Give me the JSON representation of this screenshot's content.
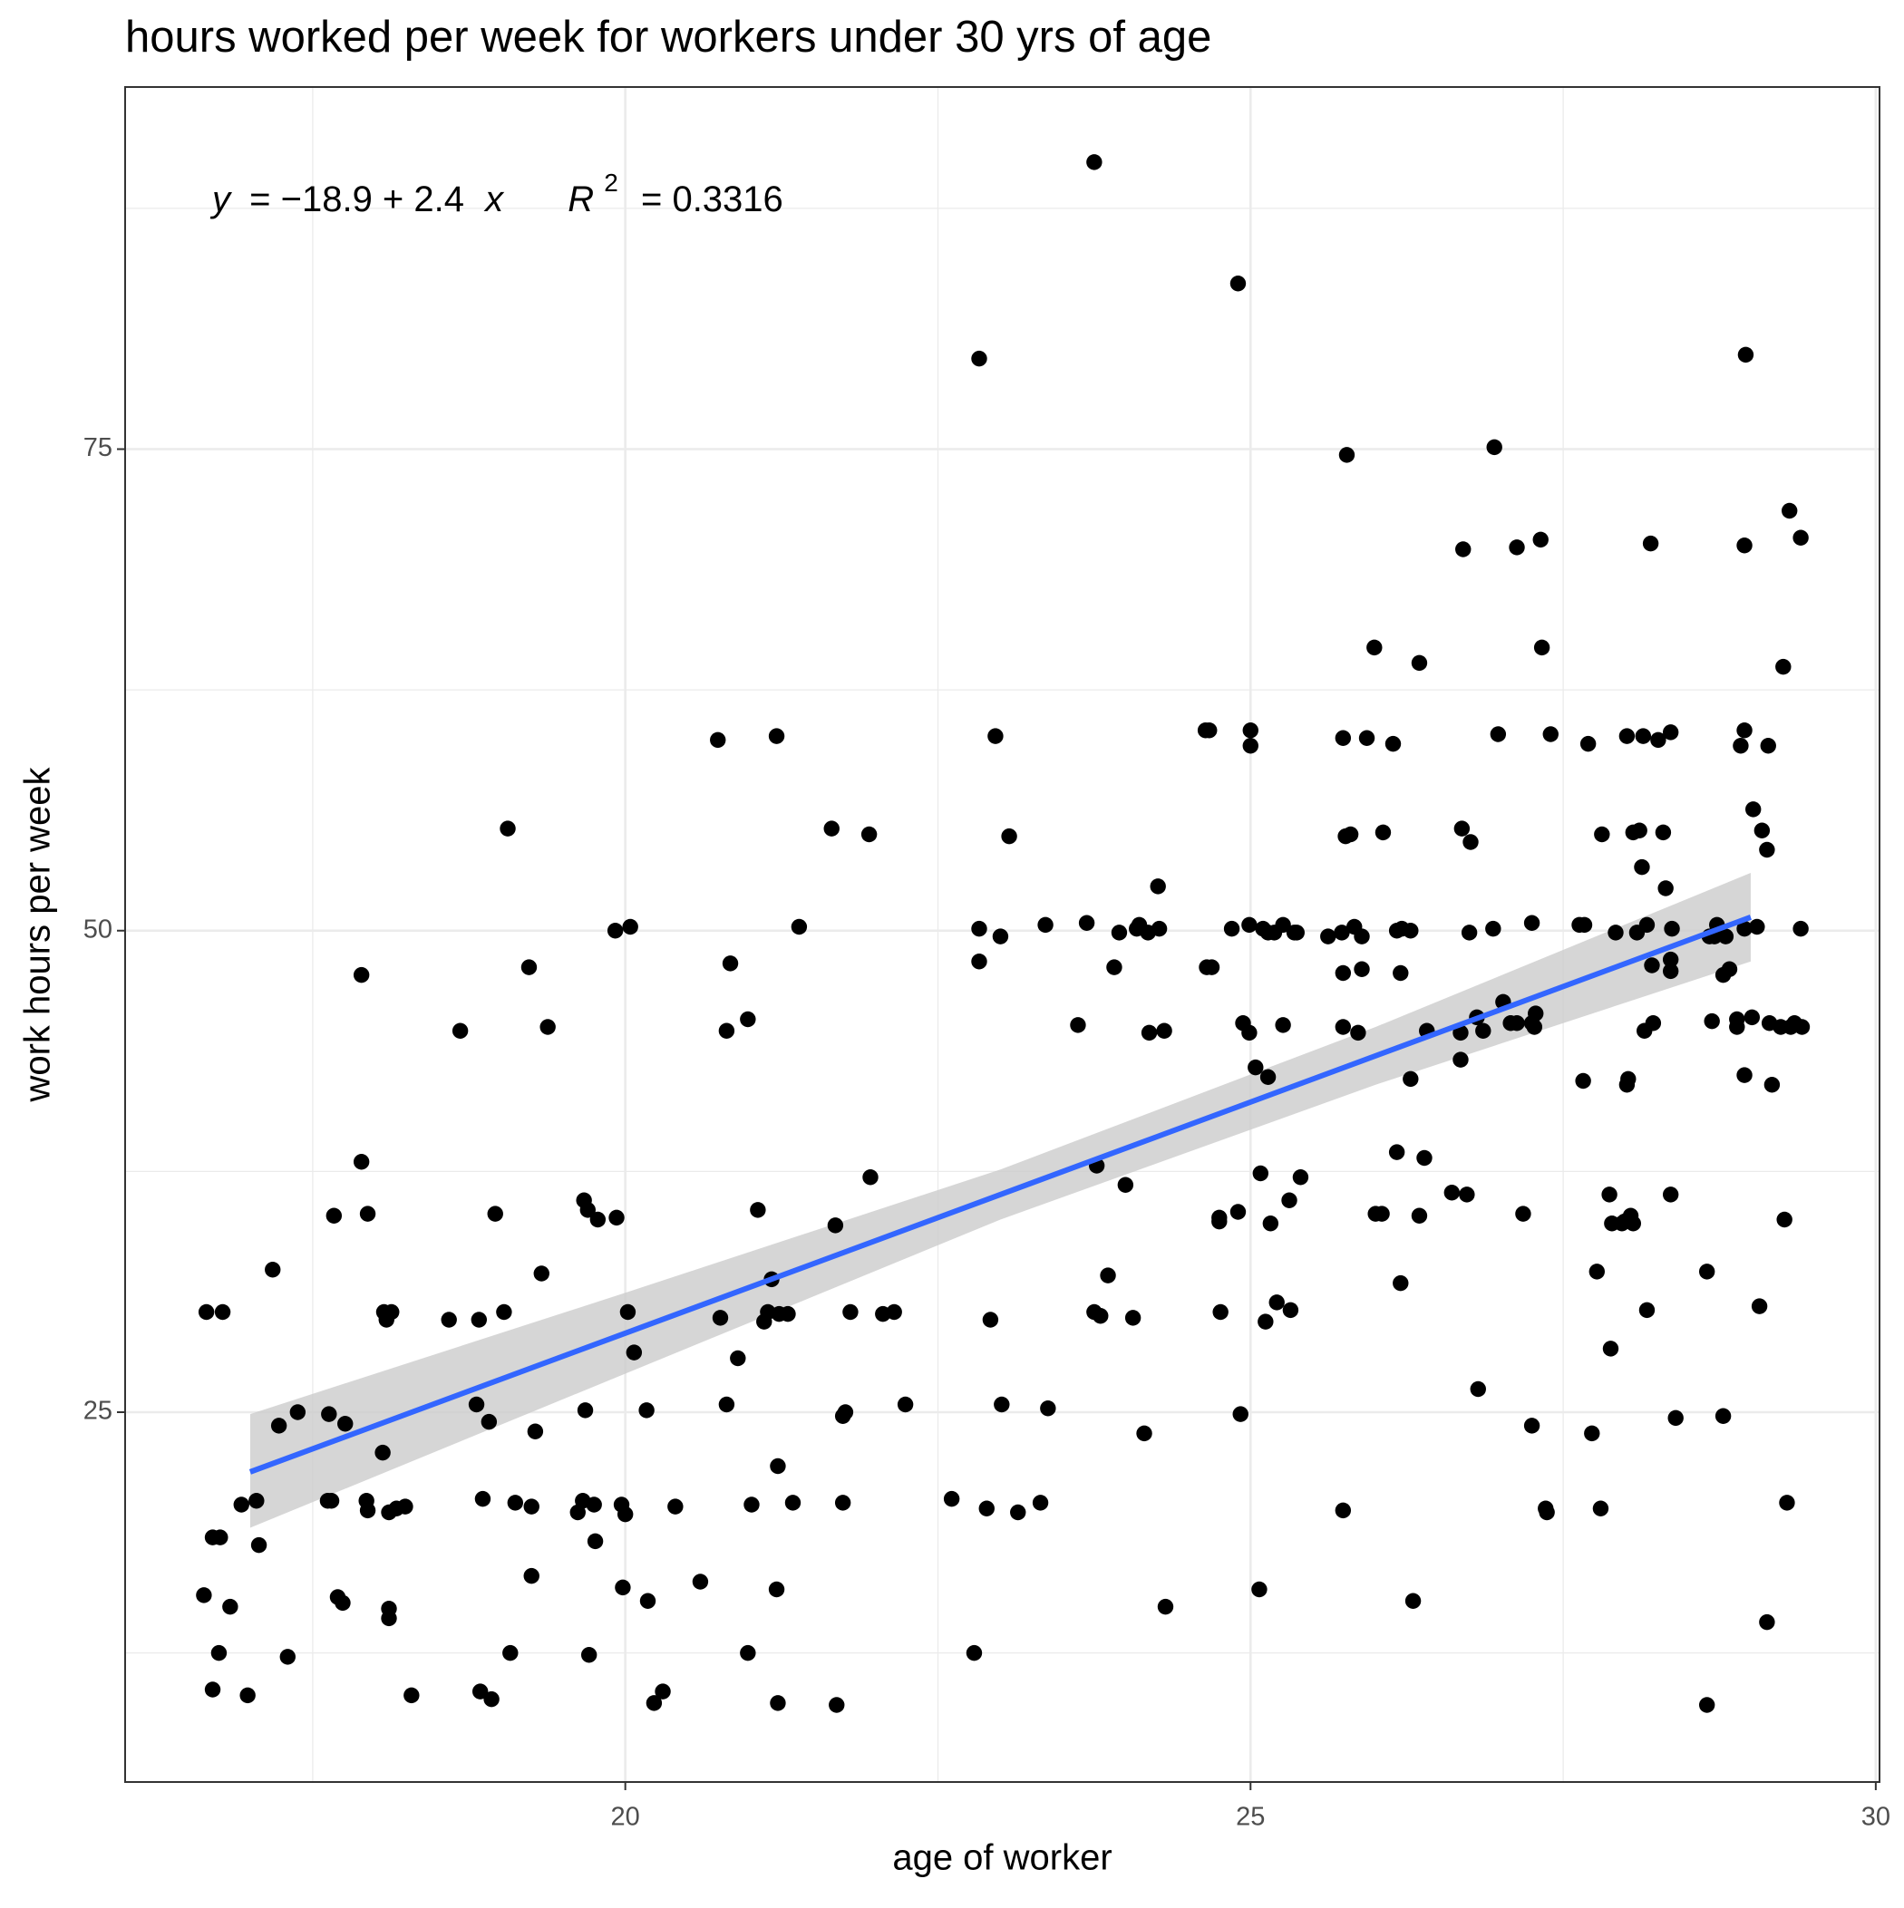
{
  "chart_data": {
    "type": "scatter",
    "title": "hours worked per week for workers under 30 yrs of age",
    "x_label": "age of worker",
    "y_label": "work hours per week",
    "xlim": [
      16,
      30.03
    ],
    "ylim": [
      5.8,
      93.8
    ],
    "xticks": [
      20,
      25,
      30
    ],
    "yticks": [
      25,
      50,
      75
    ],
    "x_minor_ticks": [
      17.5,
      22.5,
      27.5
    ],
    "y_minor_ticks": [
      12.5,
      37.5,
      62.5,
      87.5
    ],
    "grid": true,
    "annotation": {
      "y_symbol": "y",
      "equation": "= −18.9 + 2.4",
      "x_symbol": "x",
      "r_symbol": "R",
      "r_power": "2",
      "r_value": "= 0.3316"
    },
    "fit": {
      "intercept": -18.9,
      "slope": 2.4,
      "x_range": [
        17,
        29
      ],
      "color": "#3366ff",
      "band": {
        "color": "#cccccc",
        "x": [
          17,
          20,
          23,
          26,
          29
        ],
        "lower": [
          19.0,
          27.0,
          35.0,
          42.0,
          48.4
        ],
        "upper": [
          24.9,
          31.2,
          37.6,
          45.0,
          53.0
        ]
      }
    },
    "series": [
      {
        "color": "#000000",
        "x": [
          16.65,
          16.78,
          16.7,
          16.76,
          16.63,
          16.84,
          16.75,
          16.7,
          16.98,
          16.93,
          17.05,
          17.07,
          17.18,
          17.23,
          17.38,
          17.3,
          17.63,
          17.67,
          17.76,
          17.62,
          17.65,
          17.7,
          17.74,
          17.89,
          17.89,
          17.94,
          17.93,
          17.94,
          18.07,
          18.09,
          18.13,
          18.06,
          18.11,
          18.17,
          18.24,
          18.11,
          18.11,
          18.29,
          18.59,
          18.68,
          18.81,
          18.83,
          18.86,
          18.91,
          18.84,
          18.93,
          18.96,
          19.03,
          19.06,
          19.08,
          19.12,
          19.23,
          19.25,
          19.28,
          19.25,
          19.33,
          19.38,
          19.62,
          19.67,
          19.7,
          19.68,
          19.66,
          19.71,
          19.75,
          19.76,
          19.78,
          19.93,
          19.97,
          20.0,
          19.98,
          19.92,
          20.04,
          20.02,
          20.07,
          20.17,
          20.18,
          20.23,
          20.3,
          20.4,
          20.6,
          20.74,
          20.76,
          20.81,
          20.81,
          20.84,
          20.9,
          20.98,
          20.98,
          21.01,
          21.06,
          21.11,
          21.14,
          21.17,
          21.21,
          21.22,
          21.21,
          21.22,
          21.23,
          21.3,
          21.34,
          21.39,
          21.65,
          21.68,
          21.69,
          21.74,
          21.76,
          21.74,
          21.8,
          21.95,
          21.96,
          22.06,
          22.15,
          22.24,
          22.61,
          22.79,
          22.83,
          22.83,
          22.83,
          22.89,
          22.92,
          22.96,
          23.0,
          23.01,
          23.07,
          23.14,
          23.32,
          23.36,
          23.38,
          23.62,
          23.69,
          23.75,
          23.77,
          23.75,
          23.8,
          23.86,
          23.91,
          23.95,
          24.0,
          24.06,
          24.15,
          24.09,
          24.11,
          24.18,
          24.19,
          24.26,
          24.27,
          24.32,
          24.31,
          24.64,
          24.67,
          24.65,
          24.69,
          24.75,
          24.75,
          24.76,
          24.85,
          24.9,
          24.9,
          24.92,
          24.94,
          24.99,
          24.99,
          25.0,
          25.0,
          25.04,
          25.08,
          25.07,
          25.1,
          25.14,
          25.14,
          25.12,
          25.16,
          25.21,
          25.26,
          25.19,
          25.26,
          25.31,
          25.32,
          25.35,
          25.4,
          25.37,
          25.62,
          25.73,
          25.74,
          25.77,
          25.76,
          25.8,
          25.74,
          25.74,
          25.74,
          25.83,
          25.86,
          25.89,
          25.89,
          25.93,
          25.99,
          26.0,
          26.05,
          26.06,
          26.14,
          26.17,
          26.17,
          26.2,
          26.21,
          26.28,
          26.2,
          26.28,
          26.3,
          26.35,
          26.35,
          26.41,
          26.39,
          26.61,
          26.68,
          26.68,
          26.7,
          26.69,
          26.76,
          26.75,
          26.73,
          26.81,
          26.82,
          26.86,
          26.95,
          26.94,
          26.98,
          27.02,
          27.08,
          27.13,
          27.13,
          27.18,
          27.25,
          27.25,
          27.28,
          27.25,
          27.27,
          27.32,
          27.33,
          27.36,
          27.37,
          27.4,
          27.63,
          27.67,
          27.66,
          27.7,
          27.73,
          27.77,
          27.8,
          27.81,
          27.87,
          27.88,
          27.89,
          27.97,
          27.92,
          27.99,
          28.01,
          28.01,
          28.02,
          28.04,
          28.06,
          28.06,
          28.09,
          28.11,
          28.13,
          28.14,
          28.15,
          28.17,
          28.17,
          28.2,
          28.22,
          28.21,
          28.26,
          28.3,
          28.32,
          28.36,
          28.36,
          28.37,
          28.4,
          28.36,
          28.36,
          28.65,
          28.65,
          28.67,
          28.69,
          28.71,
          28.73,
          28.78,
          28.78,
          28.8,
          28.83,
          28.89,
          28.89,
          28.92,
          28.95,
          28.96,
          28.95,
          28.95,
          28.95,
          29.01,
          29.02,
          29.05,
          29.07,
          29.09,
          29.13,
          29.13,
          29.14,
          29.15,
          29.17,
          29.24,
          29.26,
          29.27,
          29.29,
          29.31,
          29.32,
          29.35,
          29.4,
          29.4,
          29.41
        ],
        "values": [
          30.2,
          30.2,
          18.5,
          18.5,
          15.5,
          14.9,
          12.5,
          10.6,
          10.3,
          20.2,
          20.4,
          18.1,
          32.4,
          24.3,
          25.0,
          12.3,
          24.9,
          35.2,
          24.4,
          20.4,
          20.4,
          15.4,
          15.1,
          47.7,
          38.0,
          35.3,
          20.4,
          19.9,
          30.2,
          29.8,
          30.2,
          22.9,
          19.8,
          20.0,
          20.1,
          14.8,
          14.3,
          10.3,
          29.8,
          44.8,
          25.4,
          29.8,
          20.5,
          24.5,
          10.5,
          10.1,
          35.3,
          30.2,
          55.3,
          12.5,
          20.3,
          48.1,
          20.1,
          24.0,
          16.5,
          32.2,
          45.0,
          19.8,
          36.0,
          35.5,
          25.1,
          20.4,
          12.4,
          20.2,
          18.3,
          35.0,
          35.1,
          20.2,
          19.7,
          15.9,
          50.0,
          50.2,
          30.2,
          28.1,
          25.1,
          15.2,
          9.9,
          10.5,
          20.1,
          16.2,
          59.9,
          29.9,
          44.8,
          25.4,
          48.3,
          27.8,
          45.4,
          12.5,
          20.2,
          35.5,
          29.7,
          30.2,
          31.9,
          60.1,
          22.2,
          15.8,
          9.9,
          30.1,
          30.1,
          20.3,
          50.2,
          55.3,
          34.7,
          9.8,
          24.8,
          25.0,
          20.3,
          30.2,
          55.0,
          37.2,
          30.1,
          30.2,
          25.4,
          20.5,
          12.5,
          79.7,
          50.1,
          48.4,
          20.0,
          29.8,
          60.1,
          49.7,
          25.4,
          54.9,
          19.8,
          20.3,
          50.3,
          25.2,
          45.1,
          50.4,
          89.9,
          37.8,
          30.2,
          30.0,
          32.1,
          48.1,
          49.9,
          36.8,
          29.9,
          23.9,
          50.1,
          50.3,
          49.9,
          44.7,
          52.3,
          50.1,
          14.9,
          44.8,
          60.4,
          60.4,
          48.1,
          48.1,
          35.1,
          34.9,
          30.2,
          50.1,
          83.6,
          35.4,
          24.9,
          45.2,
          50.3,
          44.7,
          60.4,
          59.6,
          42.9,
          37.4,
          15.8,
          50.1,
          49.9,
          42.4,
          29.7,
          34.8,
          30.7,
          45.1,
          49.9,
          50.3,
          36.0,
          30.3,
          49.9,
          37.2,
          49.9,
          49.7,
          49.9,
          60.0,
          74.7,
          54.9,
          55.0,
          47.8,
          45.0,
          19.9,
          50.2,
          44.7,
          49.7,
          48.0,
          60.0,
          64.7,
          35.3,
          35.3,
          55.1,
          59.7,
          50.0,
          38.5,
          31.7,
          50.1,
          50.0,
          47.8,
          42.3,
          15.2,
          63.9,
          35.2,
          44.8,
          38.2,
          36.4,
          43.3,
          44.7,
          69.8,
          55.3,
          54.6,
          49.9,
          36.3,
          45.5,
          26.2,
          44.8,
          75.1,
          50.1,
          60.2,
          46.3,
          45.2,
          69.9,
          45.2,
          35.3,
          24.3,
          45.2,
          45.7,
          50.4,
          45.0,
          70.3,
          64.7,
          20.0,
          19.8,
          60.2,
          50.3,
          50.3,
          42.2,
          59.7,
          23.9,
          32.3,
          20.0,
          55.0,
          36.3,
          28.3,
          34.8,
          34.8,
          49.9,
          34.9,
          60.1,
          42.0,
          42.3,
          35.2,
          55.1,
          34.8,
          49.9,
          55.2,
          53.3,
          60.1,
          44.8,
          50.3,
          30.3,
          70.1,
          45.2,
          48.2,
          59.9,
          55.1,
          52.2,
          60.3,
          36.3,
          50.1,
          24.7,
          47.9,
          48.5,
          32.3,
          9.8,
          49.7,
          45.3,
          49.7,
          50.3,
          47.7,
          24.8,
          49.7,
          48.0,
          45.0,
          45.4,
          59.6,
          70.0,
          79.9,
          42.5,
          60.4,
          50.1,
          45.5,
          56.3,
          50.2,
          30.5,
          55.2,
          54.2,
          14.1,
          59.6,
          45.2,
          42.0,
          45.0,
          63.7,
          35.0,
          20.3,
          71.8,
          45.0,
          45.2,
          50.1,
          70.4,
          45.0
        ]
      }
    ]
  }
}
